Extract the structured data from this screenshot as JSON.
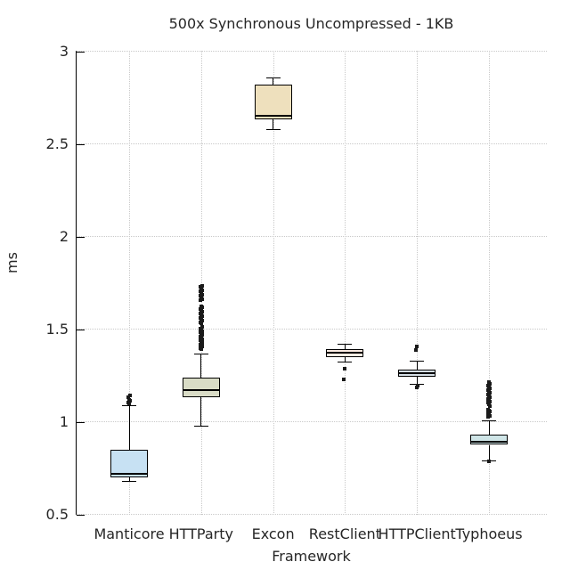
{
  "chart_data": {
    "type": "boxplot",
    "title": "500x Synchronous Uncompressed - 1KB",
    "xlabel": "Framework",
    "ylabel": "ms",
    "ylim": [
      0.5,
      3.0
    ],
    "yticks": [
      3.0,
      2.5,
      2.0,
      1.5,
      1.0,
      0.5
    ],
    "ytick_labels": [
      "3",
      "2.5",
      "2",
      "1.5",
      "1",
      "0.5"
    ],
    "grid": true,
    "legend": false,
    "categories": [
      "Manticore",
      "HTTParty",
      "Excon",
      "RestClient",
      "HTTPClient",
      "Typhoeus"
    ],
    "series": [
      {
        "name": "Manticore",
        "fill": "#c7e1f3",
        "whisker_low": 0.68,
        "q1": 0.7,
        "median": 0.72,
        "q3": 0.85,
        "whisker_high": 1.09,
        "outliers": [
          1.098,
          1.105,
          1.112,
          1.12,
          1.13,
          1.142
        ]
      },
      {
        "name": "HTTParty",
        "fill": "#d9dcc6",
        "whisker_low": 0.98,
        "q1": 1.13,
        "median": 1.17,
        "q3": 1.24,
        "whisker_high": 1.37,
        "outliers": [
          1.39,
          1.397,
          1.404,
          1.411,
          1.418,
          1.425,
          1.432,
          1.439,
          1.446,
          1.453,
          1.46,
          1.467,
          1.474,
          1.481,
          1.488,
          1.495,
          1.502,
          1.51,
          1.53,
          1.538,
          1.546,
          1.554,
          1.562,
          1.57,
          1.578,
          1.586,
          1.594,
          1.602,
          1.61,
          1.618,
          1.625,
          1.655,
          1.663,
          1.671,
          1.679,
          1.687,
          1.695,
          1.703,
          1.711,
          1.719,
          1.727,
          1.735
        ]
      },
      {
        "name": "Excon",
        "fill": "#eee0bd",
        "whisker_low": 2.58,
        "q1": 2.63,
        "median": 2.65,
        "q3": 2.82,
        "whisker_high": 2.86,
        "outliers": []
      },
      {
        "name": "RestClient",
        "fill": "#fcebe2",
        "whisker_low": 1.325,
        "q1": 1.35,
        "median": 1.375,
        "q3": 1.39,
        "whisker_high": 1.42,
        "outliers": [
          1.285,
          1.23
        ]
      },
      {
        "name": "HTTPClient",
        "fill": "#d6dfe6",
        "whisker_low": 1.205,
        "q1": 1.245,
        "median": 1.26,
        "q3": 1.28,
        "whisker_high": 1.33,
        "outliers": [
          1.405,
          1.385,
          1.195,
          1.185
        ]
      },
      {
        "name": "Typhoeus",
        "fill": "#cfe5e7",
        "whisker_low": 0.79,
        "q1": 0.875,
        "median": 0.89,
        "q3": 0.93,
        "whisker_high": 1.005,
        "outliers": [
          0.785,
          1.025,
          1.032,
          1.039,
          1.046,
          1.053,
          1.06,
          1.067,
          1.085,
          1.093,
          1.101,
          1.109,
          1.117,
          1.125,
          1.133,
          1.141,
          1.149,
          1.157,
          1.165,
          1.173,
          1.181,
          1.189,
          1.197,
          1.205,
          1.213
        ]
      }
    ]
  },
  "style": {
    "background": "#ffffff",
    "axis_color": "#000000",
    "grid_color": "#c9c9c9",
    "text_color": "#262626",
    "outlier_color": "#1a1a1a"
  }
}
